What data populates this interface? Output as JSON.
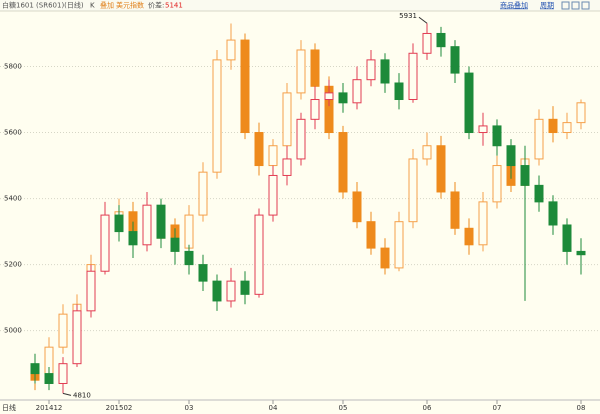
{
  "header": {
    "instrument": "白糖1601 (SR601)(日线)",
    "chart_mode": "K",
    "overlay_label": "叠加",
    "overlay_name": "美元指数",
    "spread_label": "价差:",
    "spread_value": "5141",
    "overlay_button": "商品叠加",
    "period_button": "周期"
  },
  "chart_data": {
    "type": "candlestick",
    "x_axis_label": "日线",
    "categories": [
      null,
      "201412",
      null,
      null,
      null,
      null,
      "201502",
      null,
      null,
      null,
      null,
      "03",
      null,
      null,
      null,
      null,
      null,
      "04",
      null,
      null,
      null,
      null,
      "05",
      null,
      null,
      null,
      null,
      null,
      "06",
      null,
      null,
      null,
      null,
      "07",
      null,
      null,
      null,
      null,
      null,
      "08"
    ],
    "ylim": [
      4790,
      5965
    ],
    "yticks": [
      5000,
      5200,
      5400,
      5600,
      5800
    ],
    "grid": true,
    "series": [
      {
        "name": "白糖1601",
        "up_color": "#e23c52",
        "down_color": "#1d8a3a",
        "open": [
          4900,
          4870,
          4840,
          4900,
          5060,
          5180,
          5350,
          5300,
          5260,
          5380,
          5280,
          5240,
          5200,
          5150,
          5090,
          5150,
          5110,
          5350,
          5470,
          5520,
          5640,
          5700,
          5720,
          5690,
          5760,
          5820,
          5750,
          5700,
          5840,
          5900,
          5860,
          5780,
          5600,
          5620,
          5560,
          5500,
          5440,
          5390,
          5320,
          5240
        ],
        "high": [
          4930,
          4890,
          4920,
          5080,
          5200,
          5390,
          5380,
          5330,
          5420,
          5400,
          5310,
          5260,
          5230,
          5170,
          5190,
          5180,
          5370,
          5500,
          5560,
          5660,
          5740,
          5760,
          5750,
          5800,
          5850,
          5840,
          5780,
          5870,
          5931,
          5920,
          5880,
          5800,
          5660,
          5640,
          5580,
          5560,
          5470,
          5410,
          5340,
          5280
        ],
        "low": [
          4840,
          4820,
          4810,
          4890,
          5040,
          5170,
          5270,
          5220,
          5240,
          5250,
          5200,
          5170,
          5120,
          5060,
          5070,
          5080,
          5100,
          5330,
          5440,
          5500,
          5610,
          5680,
          5660,
          5670,
          5740,
          5720,
          5670,
          5690,
          5820,
          5830,
          5750,
          5580,
          5560,
          5530,
          5460,
          5090,
          5360,
          5290,
          5200,
          5170
        ],
        "close": [
          4870,
          4840,
          4900,
          5060,
          5180,
          5350,
          5300,
          5260,
          5380,
          5280,
          5240,
          5200,
          5150,
          5090,
          5150,
          5110,
          5350,
          5470,
          5520,
          5640,
          5700,
          5720,
          5690,
          5760,
          5820,
          5750,
          5700,
          5840,
          5900,
          5860,
          5780,
          5600,
          5620,
          5560,
          5500,
          5440,
          5390,
          5320,
          5240,
          5230
        ]
      },
      {
        "name": "美元指数",
        "up_color": "#f5a04a",
        "down_color": "#ee8a1c",
        "open": [
          4880,
          4850,
          4950,
          5050,
          5080,
          5200,
          5330,
          5360,
          5300,
          5280,
          5320,
          5250,
          5350,
          5480,
          5820,
          5880,
          5600,
          5500,
          5560,
          5720,
          5850,
          5740,
          5600,
          5420,
          5330,
          5250,
          5190,
          5330,
          5520,
          5560,
          5420,
          5310,
          5260,
          5390,
          5500,
          5440,
          5520,
          5640,
          5600,
          5630
        ],
        "high": [
          4900,
          4980,
          5080,
          5110,
          5230,
          5370,
          5400,
          5390,
          5330,
          5350,
          5340,
          5380,
          5510,
          5850,
          5930,
          5900,
          5630,
          5580,
          5750,
          5880,
          5870,
          5770,
          5620,
          5450,
          5360,
          5280,
          5360,
          5550,
          5600,
          5590,
          5450,
          5340,
          5420,
          5530,
          5520,
          5550,
          5670,
          5680,
          5660,
          5700
        ],
        "low": [
          4820,
          4830,
          4930,
          5020,
          5060,
          5180,
          5300,
          5270,
          5250,
          5260,
          5220,
          5230,
          5330,
          5460,
          5790,
          5580,
          5470,
          5480,
          5540,
          5700,
          5720,
          5580,
          5400,
          5310,
          5230,
          5170,
          5180,
          5310,
          5500,
          5400,
          5290,
          5230,
          5240,
          5370,
          5420,
          5420,
          5500,
          5570,
          5580,
          5610
        ],
        "close": [
          4850,
          4950,
          5050,
          5080,
          5200,
          5330,
          5360,
          5300,
          5280,
          5320,
          5250,
          5350,
          5480,
          5820,
          5880,
          5600,
          5500,
          5560,
          5720,
          5850,
          5740,
          5600,
          5420,
          5330,
          5250,
          5190,
          5330,
          5520,
          5560,
          5420,
          5310,
          5260,
          5390,
          5500,
          5440,
          5520,
          5640,
          5600,
          5630,
          5690
        ]
      }
    ]
  }
}
